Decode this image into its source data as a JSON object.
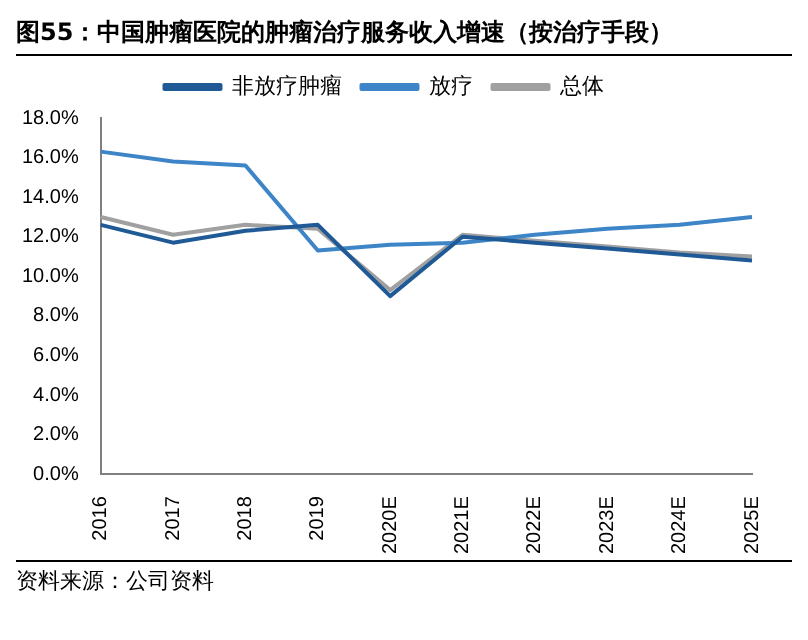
{
  "chart_data": {
    "type": "line",
    "title": "图55：中国肿瘤医院的肿瘤治疗服务收入增速（按治疗手段）",
    "categories": [
      "2016",
      "2017",
      "2018",
      "2019",
      "2020E",
      "2021E",
      "2022E",
      "2023E",
      "2024E",
      "2025E"
    ],
    "series": [
      {
        "name": "非放疗肿瘤",
        "color": "#1f5a96",
        "values": [
          12.6,
          11.7,
          12.3,
          12.6,
          9.0,
          12.0,
          11.7,
          11.4,
          11.1,
          10.8
        ]
      },
      {
        "name": "放疗",
        "color": "#3d85c6",
        "values": [
          16.3,
          15.8,
          15.6,
          11.3,
          11.6,
          11.7,
          12.1,
          12.4,
          12.6,
          13.0
        ]
      },
      {
        "name": "总体",
        "color": "#a0a0a0",
        "values": [
          13.0,
          12.1,
          12.6,
          12.4,
          9.3,
          12.1,
          11.8,
          11.5,
          11.2,
          11.0
        ]
      }
    ],
    "ylim": [
      0,
      18
    ],
    "yticks": [
      {
        "value": 0,
        "label": "0.0%"
      },
      {
        "value": 2,
        "label": "2.0%"
      },
      {
        "value": 4,
        "label": "4.0%"
      },
      {
        "value": 6,
        "label": "6.0%"
      },
      {
        "value": 8,
        "label": "8.0%"
      },
      {
        "value": 10,
        "label": "10.0%"
      },
      {
        "value": 12,
        "label": "12.0%"
      },
      {
        "value": 14,
        "label": "14.0%"
      },
      {
        "value": 16,
        "label": "16.0%"
      },
      {
        "value": 18,
        "label": "18.0%"
      }
    ],
    "grid": false,
    "legend": "top",
    "marker": "none",
    "line_style": "solid",
    "annotations": [
      "资料来源：公司资料"
    ]
  }
}
